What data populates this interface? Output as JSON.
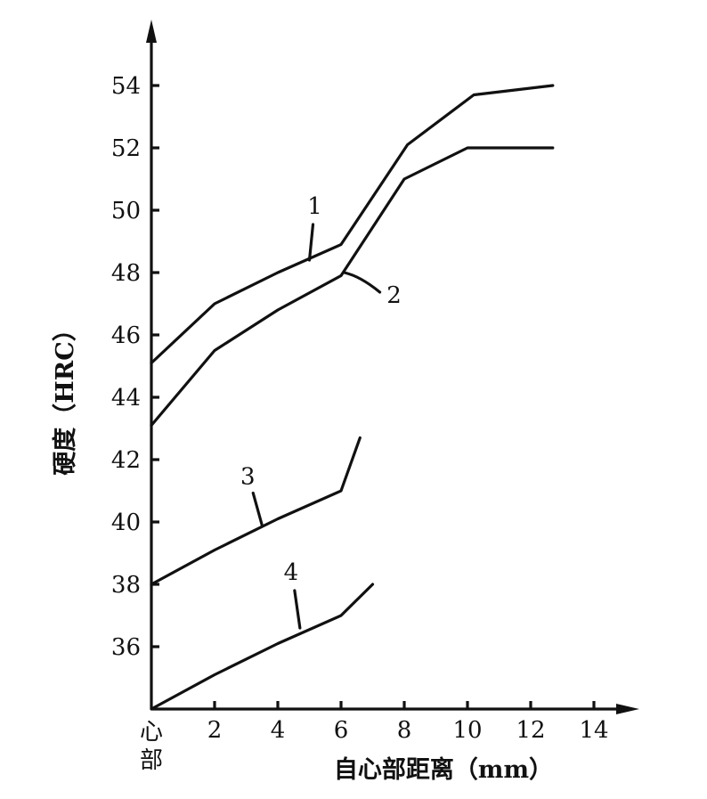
{
  "chart_data": {
    "type": "line",
    "xlabel": "自心部距离（mm）",
    "ylabel": "硬度（HRC）",
    "x_origin_label": "心部",
    "xlim": [
      0,
      15.5
    ],
    "ylim": [
      34,
      56.5
    ],
    "x_ticks": [
      2,
      4,
      6,
      8,
      10,
      12,
      14
    ],
    "y_ticks": [
      36,
      38,
      40,
      42,
      44,
      46,
      48,
      50,
      52,
      54
    ],
    "series": [
      {
        "name": "1",
        "x": [
          0,
          2,
          4,
          6,
          8.1,
          10.2,
          12.7
        ],
        "y": [
          45.1,
          47.0,
          48.0,
          48.9,
          52.1,
          53.7,
          54.0
        ],
        "label_at": [
          5.0,
          48.4
        ]
      },
      {
        "name": "2",
        "x": [
          0,
          2,
          4,
          6,
          8,
          10,
          12.7
        ],
        "y": [
          43.1,
          45.5,
          46.8,
          47.9,
          51.0,
          52.0,
          52.0
        ],
        "label_at": [
          6.1,
          48.0
        ]
      },
      {
        "name": "3",
        "x": [
          0,
          2,
          4,
          6,
          6.6
        ],
        "y": [
          38.0,
          39.1,
          40.1,
          41.0,
          42.7
        ],
        "label_at": [
          3.5,
          39.9
        ]
      },
      {
        "name": "4",
        "x": [
          0,
          2,
          4,
          6,
          7.0
        ],
        "y": [
          34.0,
          35.1,
          36.1,
          37.0,
          38.0
        ],
        "label_at": [
          4.7,
          36.6
        ]
      }
    ]
  }
}
